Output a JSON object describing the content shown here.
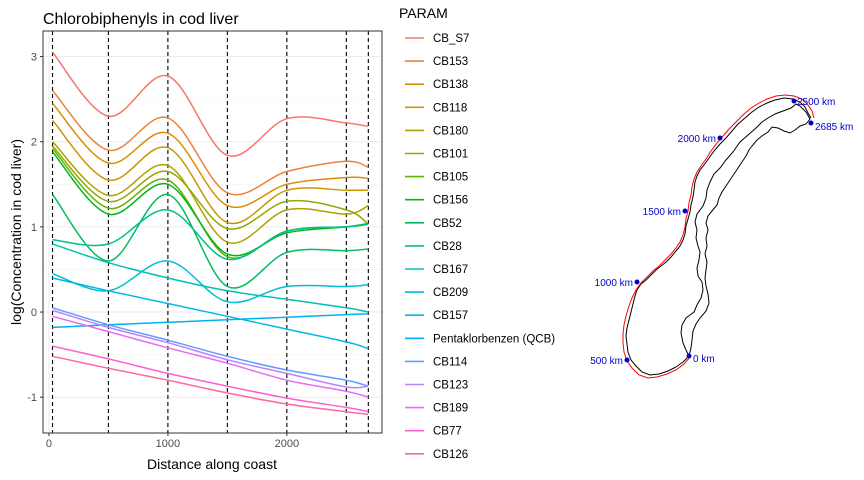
{
  "chart_data": {
    "type": "line",
    "title": "Chlorobiphenyls in cod liver",
    "xlabel": "Distance along coast",
    "ylabel": "log(Concentration in cod liver)",
    "xlim": [
      -50,
      2800
    ],
    "ylim": [
      -1.42,
      3.3
    ],
    "xticks": [
      0,
      1000,
      2000
    ],
    "yticks": [
      -1,
      0,
      1,
      2,
      3
    ],
    "grid": true,
    "vlines": [
      30,
      500,
      1000,
      1500,
      2000,
      2500,
      2685
    ],
    "legend_title": "PARAM",
    "legend_position": "right",
    "series": [
      {
        "name": "CB_S7",
        "color": "#F8766D",
        "x": [
          30,
          500,
          1000,
          1500,
          2000,
          2500,
          2685
        ],
        "y": [
          3.05,
          2.3,
          2.77,
          1.84,
          2.27,
          2.22,
          2.18
        ]
      },
      {
        "name": "CB153",
        "color": "#EC8239",
        "x": [
          30,
          500,
          1000,
          1500,
          2000,
          2500,
          2685
        ],
        "y": [
          2.6,
          1.9,
          2.28,
          1.4,
          1.65,
          1.77,
          1.7
        ]
      },
      {
        "name": "CB138",
        "color": "#DB8E00",
        "x": [
          30,
          500,
          1000,
          1500,
          2000,
          2500,
          2685
        ],
        "y": [
          2.45,
          1.75,
          2.1,
          1.25,
          1.5,
          1.58,
          1.57
        ]
      },
      {
        "name": "CB118",
        "color": "#C79800",
        "x": [
          30,
          500,
          1000,
          1500,
          2000,
          2500,
          2685
        ],
        "y": [
          2.25,
          1.55,
          1.93,
          1.05,
          1.43,
          1.43,
          1.43
        ]
      },
      {
        "name": "CB180",
        "color": "#AEA200",
        "x": [
          30,
          500,
          1000,
          1500,
          2000,
          2500,
          2685
        ],
        "y": [
          2.0,
          1.37,
          1.72,
          0.82,
          1.2,
          1.15,
          1.25
        ]
      },
      {
        "name": "CB101",
        "color": "#8FAA00",
        "x": [
          30,
          500,
          1000,
          1500,
          2000,
          2500,
          2685
        ],
        "y": [
          1.95,
          1.3,
          1.65,
          0.98,
          1.3,
          1.2,
          1.03
        ]
      },
      {
        "name": "CB105",
        "color": "#64B200",
        "x": [
          30,
          500,
          1000,
          1500,
          2000,
          2500,
          2685
        ],
        "y": [
          1.92,
          1.22,
          1.55,
          0.65,
          0.95,
          1.0,
          1.03
        ]
      },
      {
        "name": "CB156",
        "color": "#00B81B",
        "x": [
          30,
          500,
          1000,
          1500,
          2000,
          2500,
          2685
        ],
        "y": [
          1.88,
          1.15,
          1.5,
          0.68,
          0.93,
          1.0,
          1.04
        ]
      },
      {
        "name": "CB52",
        "color": "#00BD5C",
        "x": [
          30,
          500,
          1000,
          1500,
          2000,
          2500,
          2685
        ],
        "y": [
          1.38,
          0.6,
          1.38,
          0.3,
          0.7,
          0.72,
          0.74
        ]
      },
      {
        "name": "CB28",
        "color": "#00C08E",
        "x": [
          30,
          500,
          1000,
          1500,
          2000,
          2500,
          2685
        ],
        "y": [
          0.85,
          0.8,
          1.2,
          0.62,
          0.95,
          1.0,
          1.03
        ]
      },
      {
        "name": "CB167",
        "color": "#00C1B2",
        "x": [
          30,
          500,
          1000,
          1500,
          2000,
          2500,
          2685
        ],
        "y": [
          0.8,
          0.58,
          0.4,
          0.25,
          0.15,
          0.05,
          0.0
        ]
      },
      {
        "name": "CB209",
        "color": "#00BFD1",
        "x": [
          30,
          500,
          1000,
          1500,
          2000,
          2500,
          2685
        ],
        "y": [
          0.45,
          0.25,
          0.6,
          0.12,
          0.3,
          0.3,
          0.32
        ]
      },
      {
        "name": "CB157",
        "color": "#00BAE9",
        "x": [
          30,
          500,
          1000,
          1500,
          2000,
          2500,
          2685
        ],
        "y": [
          0.4,
          0.25,
          0.1,
          -0.05,
          -0.2,
          -0.35,
          -0.43
        ]
      },
      {
        "name": "Pentaklorbenzen (QCB)",
        "color": "#00B0F6",
        "x": [
          30,
          500,
          1000,
          1500,
          2000,
          2500,
          2685
        ],
        "y": [
          -0.18,
          -0.15,
          -0.12,
          -0.09,
          -0.06,
          -0.03,
          -0.02
        ]
      },
      {
        "name": "CB114",
        "color": "#619CFF",
        "x": [
          30,
          500,
          1000,
          1500,
          2000,
          2500,
          2685
        ],
        "y": [
          0.05,
          -0.15,
          -0.33,
          -0.52,
          -0.68,
          -0.8,
          -0.87
        ]
      },
      {
        "name": "CB123",
        "color": "#B983FF",
        "x": [
          30,
          500,
          1000,
          1500,
          2000,
          2500,
          2685
        ],
        "y": [
          0.02,
          -0.18,
          -0.36,
          -0.56,
          -0.72,
          -0.88,
          -0.87
        ]
      },
      {
        "name": "CB189",
        "color": "#E76BF3",
        "x": [
          30,
          500,
          1000,
          1500,
          2000,
          2500,
          2685
        ],
        "y": [
          -0.05,
          -0.23,
          -0.42,
          -0.6,
          -0.8,
          -0.93,
          -1.0
        ]
      },
      {
        "name": "CB77",
        "color": "#FD61D1",
        "x": [
          30,
          500,
          1000,
          1500,
          2000,
          2500,
          2685
        ],
        "y": [
          -0.4,
          -0.55,
          -0.72,
          -0.87,
          -1.01,
          -1.12,
          -1.17
        ]
      },
      {
        "name": "CB126",
        "color": "#FF67A4",
        "x": [
          30,
          500,
          1000,
          1500,
          2000,
          2500,
          2685
        ],
        "y": [
          -0.52,
          -0.66,
          -0.8,
          -0.95,
          -1.08,
          -1.17,
          -1.2
        ]
      }
    ]
  },
  "map": {
    "stations": [
      {
        "label": "0 km"
      },
      {
        "label": "500 km"
      },
      {
        "label": "1000 km"
      },
      {
        "label": "1500 km"
      },
      {
        "label": "2000 km"
      },
      {
        "label": "2500 km"
      },
      {
        "label": "2685 km"
      }
    ],
    "coast_line_color": "#ff0000",
    "land_outline_color": "#000000",
    "station_color": "#0000cc"
  }
}
